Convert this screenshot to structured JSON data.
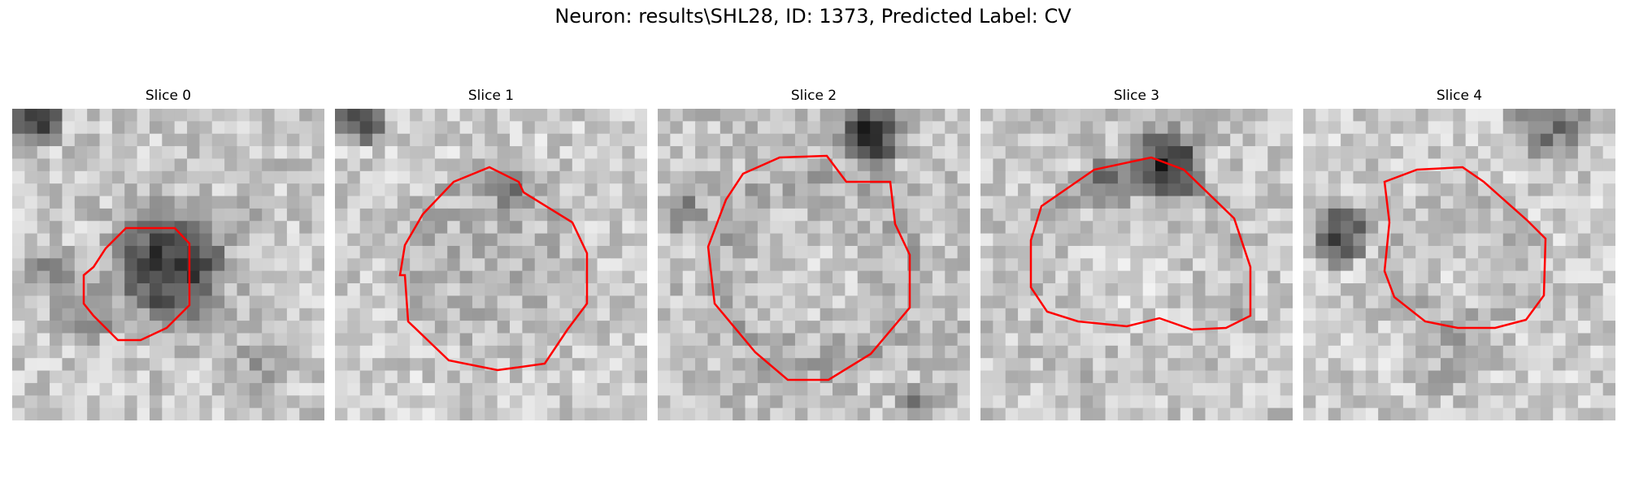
{
  "figure": {
    "title": "Neuron: results\\SHL28, ID: 1373, Predicted Label: CV"
  },
  "panels": [
    {
      "title": "Slice 0"
    },
    {
      "title": "Slice 1"
    },
    {
      "title": "Slice 2"
    },
    {
      "title": "Slice 3"
    },
    {
      "title": "Slice 4"
    }
  ],
  "colors": {
    "contour": "#ff0000",
    "background": "#ffffff"
  }
}
